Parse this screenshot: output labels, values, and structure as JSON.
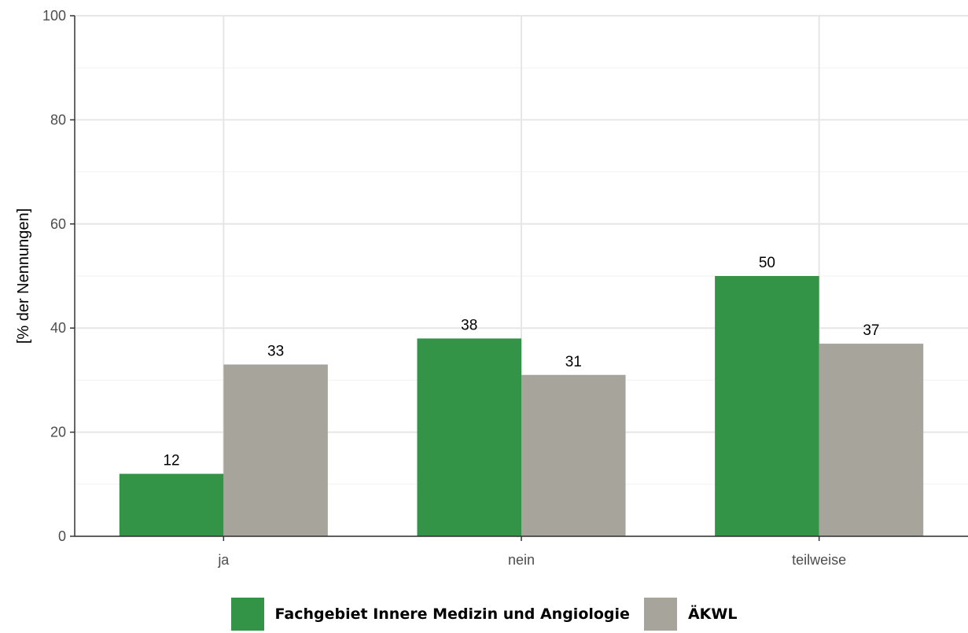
{
  "chart_data": {
    "type": "bar",
    "categories": [
      "ja",
      "nein",
      "teilweise"
    ],
    "series": [
      {
        "name": "Fachgebiet Innere Medizin und Angiologie",
        "values": [
          12,
          38,
          50
        ],
        "labels": [
          "12",
          "38",
          "50"
        ],
        "color": "#339448"
      },
      {
        "name": "ÄKWL",
        "values": [
          33,
          31,
          37
        ],
        "labels": [
          "33",
          "31",
          "37"
        ],
        "color": "#a7a49c"
      }
    ],
    "title": "",
    "xlabel": "",
    "ylabel": "[% der Nennungen]",
    "ylim": [
      0,
      100
    ],
    "yticks": [
      "0",
      "20",
      "40",
      "60",
      "80",
      "100"
    ],
    "grid": true,
    "legend_position": "bottom"
  }
}
